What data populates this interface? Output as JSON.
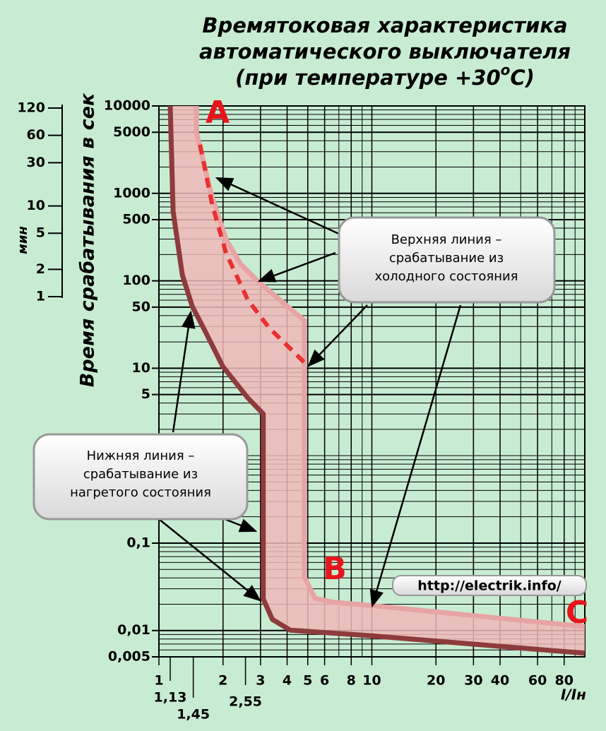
{
  "chart_data": {
    "type": "line",
    "title": [
      "Времятоковая характеристика",
      "автоматического выключателя",
      "(при температуре +30"
    ],
    "title_sup": "o",
    "title_end": "C)",
    "y_label": "Время срабатывания в сек",
    "x_label": "I/Iн",
    "y2_label": "мин",
    "xlim": [
      1,
      100
    ],
    "ylim": [
      0.005,
      10000
    ],
    "log_x": true,
    "log_y": true,
    "grid": true,
    "xticks": [
      1,
      {
        "value": 1.13,
        "label": "1,13"
      },
      {
        "value": 1.45,
        "label": "1,45"
      },
      2,
      {
        "value": 2.55,
        "label": "2,55"
      },
      3,
      4,
      5,
      6,
      8,
      10,
      20,
      30,
      40,
      60,
      80
    ],
    "yticks": [
      10000,
      5000,
      1000,
      500,
      100,
      50,
      10,
      5,
      {
        "value": 0.1,
        "label": "0,1"
      },
      {
        "value": 0.01,
        "label": "0,01"
      },
      {
        "value": 0.005,
        "label": "0,005"
      }
    ],
    "y2lim": [
      1,
      120
    ],
    "y2ticks": [
      120,
      60,
      30,
      10,
      5,
      2,
      1
    ],
    "series": [
      {
        "color": "#e8a4a4",
        "style": "solid",
        "x": [
          1.5,
          1.5,
          1.778,
          2.07,
          2.42,
          2.93,
          4.82,
          4.82,
          5.4,
          6.55,
          10,
          100
        ],
        "values": [
          10000,
          5000,
          900,
          296,
          155,
          97.6,
          35,
          0.041,
          0.0234,
          0.0211,
          0.0193,
          0.0111
        ]
      },
      {
        "color": "#8e3b3b",
        "style": "solid",
        "x": [
          1.13,
          1.166,
          1.288,
          1.434,
          1.646,
          1.995,
          2.61,
          3.09,
          3.09,
          3.41,
          4.14,
          10,
          100
        ],
        "values": [
          10000,
          621,
          117,
          51,
          26.7,
          10.5,
          4.6,
          3.0,
          0.023,
          0.0134,
          0.0101,
          0.0087,
          0.0055
        ]
      },
      {
        "color": "#e83030",
        "style": "dashed",
        "x": [
          1.56,
          1.778,
          2.07,
          2.61,
          3.29,
          4.14,
          4.82
        ],
        "values": [
          3610,
          748,
          205,
          61,
          29,
          16.8,
          11.6
        ]
      }
    ],
    "annotations": {
      "a": "A",
      "b": "B",
      "c": "C",
      "upper": [
        "Верхняя линия –",
        "срабатывание из",
        "холодного состояния"
      ],
      "lower": [
        "Нижняя линия –",
        "срабатывание из",
        "нагретого состояния"
      ],
      "url": "http://electrik.info/"
    }
  }
}
